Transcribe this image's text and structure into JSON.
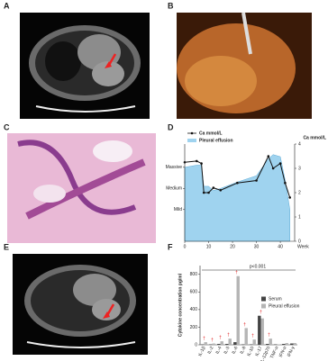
{
  "panels": [
    "A",
    "B",
    "C",
    "D",
    "E",
    "F"
  ],
  "chart_data": [
    {
      "type": "line",
      "legend": "top-left",
      "x": [
        0,
        5,
        7,
        8,
        10,
        12,
        15,
        22,
        30,
        35,
        37,
        40,
        42,
        44
      ],
      "xlim": [
        0,
        46
      ],
      "xticks": [
        0,
        10,
        20,
        30,
        40
      ],
      "xlabel": "Week",
      "ylim": [
        -0.5,
        4.1
      ],
      "yticks": [
        {
          "value": 1,
          "label": "Mild"
        },
        {
          "value": 2,
          "label": "Medium"
        },
        {
          "value": 3,
          "label": "Massive"
        }
      ],
      "y2lim": [
        0,
        4
      ],
      "y2ticks": [
        0,
        1,
        2,
        3,
        4
      ],
      "y2label": "Ca mmol/L",
      "series": [
        {
          "name": "Ca mmol/L",
          "color": "#111111",
          "axis": "y2",
          "values": [
            3.25,
            3.3,
            3.2,
            2.0,
            2.0,
            2.2,
            2.1,
            2.4,
            2.5,
            3.5,
            3.0,
            3.2,
            2.4,
            1.8
          ]
        },
        {
          "name": "Pleural effusion",
          "color": "#9fd3ef",
          "values": [
            3.0,
            3.1,
            3.1,
            2.1,
            2.1,
            1.9,
            2.0,
            2.3,
            2.6,
            3.4,
            3.6,
            3.5,
            2.4,
            1.0
          ]
        }
      ]
    },
    {
      "type": "bar",
      "legend": "right",
      "ylabel": "Cytokine concentration pg/ml",
      "annotation": "p<0.001",
      "significance_symbol": "†",
      "significant": [
        true,
        true,
        true,
        true,
        true,
        true,
        true,
        true,
        true,
        false,
        false,
        false
      ],
      "categories": [
        "IL-1β",
        "IL-2",
        "IL-4",
        "IL-5",
        "IL-6",
        "IL-8",
        "IL-10",
        "IL-17",
        "IL-12p70",
        "TNF-α",
        "IFN-α",
        "IFN-γ"
      ],
      "ylim": [
        0,
        900
      ],
      "yticks": [
        0,
        200,
        400,
        600,
        800
      ],
      "series": [
        {
          "name": "Serum",
          "color": "#444444",
          "values": [
            5,
            5,
            10,
            10,
            30,
            5,
            5,
            330,
            10,
            5,
            10,
            15
          ]
        },
        {
          "name": "Pleural effusion",
          "color": "#b5b5b5",
          "values": [
            30,
            15,
            40,
            70,
            780,
            190,
            60,
            300,
            70,
            5,
            20,
            20
          ]
        }
      ]
    }
  ]
}
